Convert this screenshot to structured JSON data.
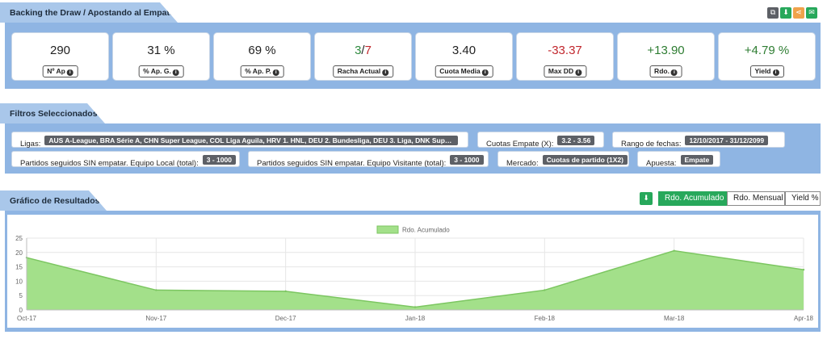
{
  "summary": {
    "title": "Backing the Draw / Apostando al Empate",
    "toolbar_colors": [
      "#5d6066",
      "#27a85b",
      "#f0a24b",
      "#27a85b"
    ],
    "stats": [
      {
        "value": "290",
        "label": "Nº Ap",
        "color": "#222222"
      },
      {
        "value": "31 %",
        "label": "% Ap. G.",
        "color": "#222222"
      },
      {
        "value": "69 %",
        "label": "% Ap. P.",
        "color": "#222222"
      },
      {
        "value_a": "3",
        "value_sep": "/",
        "value_b": "7",
        "label": "Racha Actual",
        "color_a": "#2e8a3e",
        "color_b": "#c1272d"
      },
      {
        "value": "3.40",
        "label": "Cuota Media",
        "color": "#222222"
      },
      {
        "value": "-33.37",
        "label": "Max DD",
        "color": "#c1272d"
      },
      {
        "value": "+13.90",
        "label": "Rdo.",
        "color": "#2e7d32"
      },
      {
        "value": "+4.79 %",
        "label": "Yield",
        "color": "#2e7d32"
      }
    ]
  },
  "filters": {
    "title": "Filtros Seleccionados",
    "row1": [
      {
        "label": "Ligas:",
        "value": "AUS A-League, BRA Série A, CHN Super League, COL Liga Aguila, HRV 1. HNL, DEU 2. Bundesliga, DEU 3. Liga, DNK Superliga ..."
      },
      {
        "label": "Cuotas Empate (X):",
        "value": "3.2 - 3.56"
      },
      {
        "label": "Rango de fechas:",
        "value": "12/10/2017 - 31/12/2099"
      }
    ],
    "row2": [
      {
        "label": "Partidos seguidos SIN empatar. Equipo Local (total):",
        "value": "3 - 1000"
      },
      {
        "label": "Partidos seguidos SIN empatar. Equipo Visitante (total):",
        "value": "3 - 1000"
      },
      {
        "label": "Mercado:",
        "value": "Cuotas de partido (1X2)"
      },
      {
        "label": "Apuesta:",
        "value": "Empate"
      }
    ]
  },
  "results": {
    "title": "Gráfico de Resultados",
    "buttons": {
      "accumulated": "Rdo. Acumulado",
      "monthly": "Rdo. Mensual",
      "yield": "Yield %"
    },
    "active_button": "accumulated"
  },
  "chart_data": {
    "type": "area",
    "x": [
      "Oct-17",
      "Nov-17",
      "Dec-17",
      "Jan-18",
      "Feb-18",
      "Mar-18",
      "Apr-18"
    ],
    "series": [
      {
        "name": "Rdo. Acumulado",
        "values": [
          18.2,
          6.9,
          6.5,
          1.0,
          6.9,
          20.6,
          14.0
        ]
      }
    ],
    "ylim": [
      0,
      25
    ],
    "yticks": [
      0,
      5,
      10,
      15,
      20,
      25
    ],
    "fill_color": "#a3e08a",
    "line_color": "#7cc661",
    "grid": true,
    "legend_position": "top-center"
  }
}
